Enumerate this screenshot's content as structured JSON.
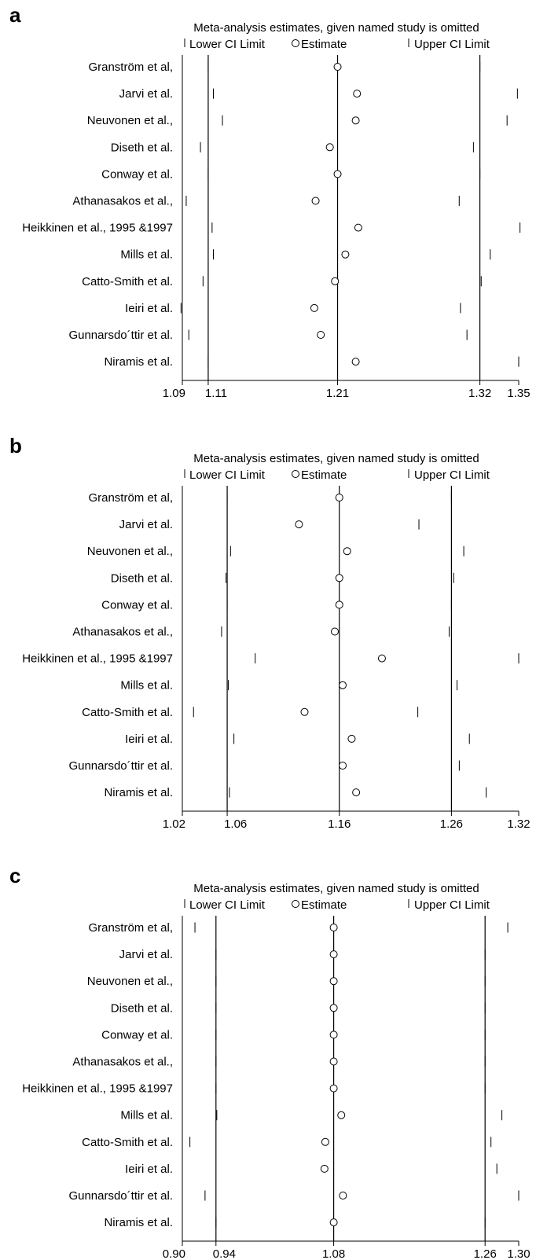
{
  "chart_data": [
    {
      "panel": "a",
      "type": "scatter",
      "title": "Meta-analysis estimates, given named study is omitted",
      "legend": [
        "Lower CI Limit",
        "Estimate",
        "Upper CI Limit"
      ],
      "legend_position": "top",
      "studies": [
        "Granström et al,",
        "Jarvi et al.",
        "Neuvonen et al.,",
        "Diseth et al.",
        "Conway et al.",
        "Athanasakos et al.,",
        "Heikkinen et al., 1995 &1997",
        "Mills et al.",
        "Catto-Smith et al.",
        "Ieiri et al.",
        "Gunnarsdo´ttir et al.",
        "Niramis et al."
      ],
      "lower": [
        1.11,
        1.114,
        1.121,
        1.104,
        1.11,
        1.093,
        1.113,
        1.114,
        1.106,
        1.089,
        1.095,
        1.11
      ],
      "estimate": [
        1.21,
        1.225,
        1.224,
        1.204,
        1.21,
        1.193,
        1.226,
        1.216,
        1.208,
        1.192,
        1.197,
        1.224
      ],
      "upper": [
        1.32,
        1.349,
        1.341,
        1.315,
        1.32,
        1.304,
        1.351,
        1.328,
        1.321,
        1.305,
        1.31,
        1.35
      ],
      "reference_lines": [
        1.11,
        1.21,
        1.32
      ],
      "xticks": [
        1.09,
        1.11,
        1.21,
        1.32,
        1.35
      ],
      "xtick_labels": [
        "1.09",
        "1.11",
        "1.21",
        "1.32",
        "1.35"
      ],
      "xlim": [
        1.09,
        1.35
      ]
    },
    {
      "panel": "b",
      "type": "scatter",
      "title": "Meta-analysis estimates, given named study is omitted",
      "legend": [
        "Lower CI Limit",
        "Estimate",
        "Upper CI Limit"
      ],
      "legend_position": "top",
      "studies": [
        "Granström et al,",
        "Jarvi et al.",
        "Neuvonen et al.,",
        "Diseth et al.",
        "Conway et al.",
        "Athanasakos et al.,",
        "Heikkinen et al., 1995 &1997",
        "Mills et al.",
        "Catto-Smith et al.",
        "Ieiri et al.",
        "Gunnarsdo´ttir et al.",
        "Niramis et al."
      ],
      "lower": [
        1.06,
        1.02,
        1.063,
        1.059,
        1.06,
        1.055,
        1.085,
        1.061,
        1.03,
        1.066,
        1.06,
        1.062
      ],
      "estimate": [
        1.16,
        1.124,
        1.167,
        1.16,
        1.16,
        1.156,
        1.198,
        1.163,
        1.129,
        1.171,
        1.163,
        1.175
      ],
      "upper": [
        1.26,
        1.231,
        1.271,
        1.262,
        1.26,
        1.258,
        1.32,
        1.265,
        1.23,
        1.276,
        1.267,
        1.291
      ],
      "reference_lines": [
        1.06,
        1.16,
        1.26
      ],
      "xticks": [
        1.02,
        1.06,
        1.16,
        1.26,
        1.32
      ],
      "xtick_labels": [
        "1.02",
        "1.06",
        "1.16",
        "1.26",
        "1.32"
      ],
      "xlim": [
        1.02,
        1.32
      ]
    },
    {
      "panel": "c",
      "type": "scatter",
      "title": "Meta-analysis estimates, given named study is omitted",
      "legend": [
        "Lower CI Limit",
        "Estimate",
        "Upper CI Limit"
      ],
      "legend_position": "top",
      "studies": [
        "Granström et al,",
        "Jarvi et al.",
        "Neuvonen et al.,",
        "Diseth et al.",
        "Conway et al.",
        "Athanasakos et al.,",
        "Heikkinen et al., 1995 &1997",
        "Mills et al.",
        "Catto-Smith et al.",
        "Ieiri et al.",
        "Gunnarsdo´ttir et al.",
        "Niramis et al."
      ],
      "lower": [
        0.915,
        0.94,
        0.94,
        0.94,
        0.94,
        0.94,
        0.94,
        0.941,
        0.909,
        0.9,
        0.927,
        0.94
      ],
      "estimate": [
        1.08,
        1.08,
        1.08,
        1.08,
        1.08,
        1.08,
        1.08,
        1.089,
        1.07,
        1.069,
        1.091,
        1.08
      ],
      "upper": [
        1.287,
        1.26,
        1.26,
        1.26,
        1.26,
        1.26,
        1.26,
        1.28,
        1.267,
        1.274,
        1.3,
        1.26
      ],
      "reference_lines": [
        0.94,
        1.08,
        1.26
      ],
      "xticks": [
        0.9,
        0.94,
        1.08,
        1.26,
        1.3
      ],
      "xtick_labels": [
        "0.90",
        "0.94",
        "1.08",
        "1.26",
        "1.30"
      ],
      "xlim": [
        0.9,
        1.3
      ]
    }
  ]
}
